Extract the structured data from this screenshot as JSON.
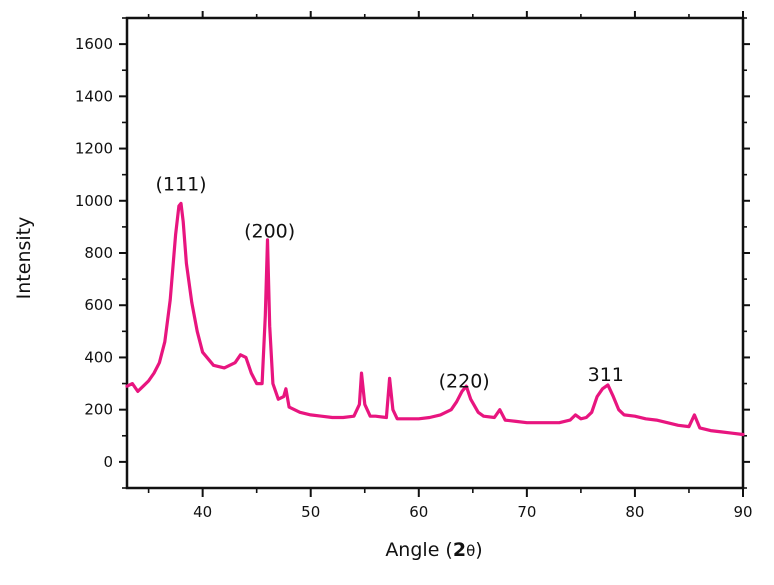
{
  "chart_data": {
    "type": "line",
    "xlabel_prefix": "Angle (",
    "xlabel_bold": "2",
    "xlabel_theta": "θ",
    "xlabel_suffix": ")",
    "ylabel": "Intensity",
    "xlim": [
      33,
      90
    ],
    "ylim": [
      -100,
      1700
    ],
    "x_ticks": [
      40,
      50,
      60,
      70,
      80,
      90
    ],
    "y_ticks": [
      0,
      200,
      400,
      600,
      800,
      1000,
      1200,
      1400,
      1600
    ],
    "grid": false,
    "series": [
      {
        "color": "#e8157f",
        "x": [
          33,
          33.5,
          34,
          34.5,
          35,
          35.5,
          36,
          36.5,
          37,
          37.5,
          37.8,
          38,
          38.2,
          38.5,
          39,
          39.5,
          40,
          41,
          42,
          43,
          43.5,
          44,
          44.5,
          45,
          45.5,
          45.8,
          46,
          46.2,
          46.5,
          47,
          47.5,
          47.7,
          48,
          49,
          50,
          51,
          52,
          53,
          54,
          54.5,
          54.7,
          55,
          55.5,
          56,
          57,
          57.3,
          57.6,
          58,
          59,
          60,
          61,
          62,
          63,
          63.5,
          64,
          64.4,
          64.8,
          65.5,
          66,
          67,
          67.5,
          68,
          69,
          70,
          71,
          72,
          73,
          74,
          74.5,
          75,
          75.5,
          76,
          76.5,
          77,
          77.5,
          78,
          78.5,
          79,
          80,
          81,
          82,
          83,
          84,
          85,
          85.5,
          86,
          87,
          88,
          89,
          90
        ],
        "y": [
          290,
          300,
          270,
          290,
          310,
          340,
          380,
          460,
          620,
          870,
          980,
          990,
          920,
          760,
          610,
          500,
          420,
          370,
          360,
          380,
          410,
          400,
          340,
          300,
          300,
          560,
          850,
          520,
          300,
          240,
          250,
          280,
          210,
          190,
          180,
          175,
          170,
          170,
          175,
          220,
          340,
          220,
          175,
          175,
          170,
          320,
          200,
          165,
          165,
          165,
          170,
          180,
          200,
          230,
          270,
          290,
          240,
          190,
          175,
          170,
          200,
          160,
          155,
          150,
          150,
          150,
          150,
          160,
          180,
          165,
          170,
          190,
          250,
          280,
          295,
          250,
          200,
          180,
          175,
          165,
          160,
          150,
          140,
          135,
          180,
          130,
          120,
          115,
          110,
          105
        ]
      }
    ],
    "annotations": [
      {
        "text": "(111)",
        "x": 38,
        "y": 1040
      },
      {
        "text": "(200)",
        "x": 46.2,
        "y": 860
      },
      {
        "text": "(220)",
        "x": 64.2,
        "y": 285
      },
      {
        "text": "311",
        "x": 77.3,
        "y": 310
      }
    ]
  }
}
